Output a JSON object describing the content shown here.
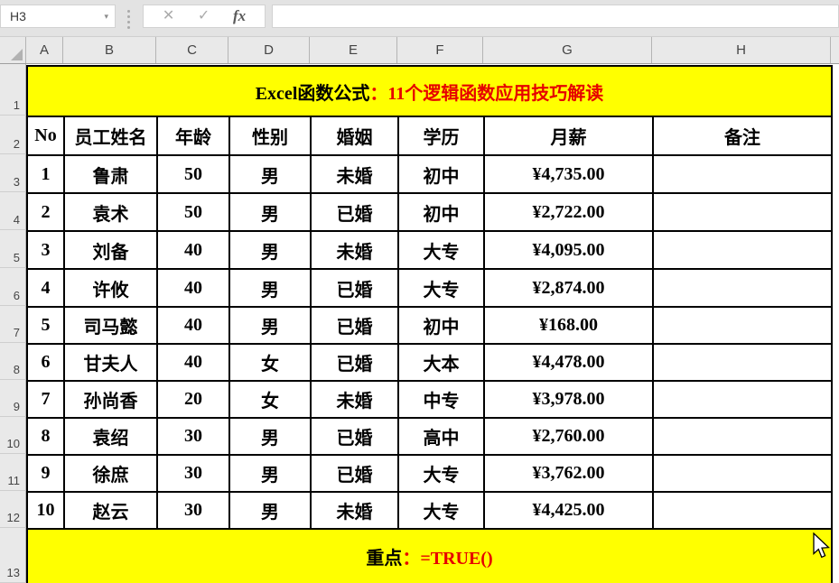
{
  "app": {
    "name_box": "H3",
    "formula_bar_value": ""
  },
  "toolbar_icons": {
    "cancel": "✕",
    "confirm": "✓",
    "function": "fx",
    "namebox_caret": "▾"
  },
  "grid": {
    "column_letters": [
      "A",
      "B",
      "C",
      "D",
      "E",
      "F",
      "G",
      "H"
    ],
    "row_numbers": [
      "1",
      "2",
      "3",
      "4",
      "5",
      "6",
      "7",
      "8",
      "9",
      "10",
      "11",
      "12",
      "13"
    ]
  },
  "banner": {
    "title_black": "Excel函数公式",
    "title_red": "：11个逻辑函数应用技巧解读"
  },
  "table": {
    "headers": [
      "No",
      "员工姓名",
      "年龄",
      "性别",
      "婚姻",
      "学历",
      "月薪",
      "备注"
    ],
    "rows": [
      [
        "1",
        "鲁肃",
        "50",
        "男",
        "未婚",
        "初中",
        "¥4,735.00",
        ""
      ],
      [
        "2",
        "袁术",
        "50",
        "男",
        "已婚",
        "初中",
        "¥2,722.00",
        ""
      ],
      [
        "3",
        "刘备",
        "40",
        "男",
        "未婚",
        "大专",
        "¥4,095.00",
        ""
      ],
      [
        "4",
        "许攸",
        "40",
        "男",
        "已婚",
        "大专",
        "¥2,874.00",
        ""
      ],
      [
        "5",
        "司马懿",
        "40",
        "男",
        "已婚",
        "初中",
        "¥168.00",
        ""
      ],
      [
        "6",
        "甘夫人",
        "40",
        "女",
        "已婚",
        "大本",
        "¥4,478.00",
        ""
      ],
      [
        "7",
        "孙尚香",
        "20",
        "女",
        "未婚",
        "中专",
        "¥3,978.00",
        ""
      ],
      [
        "8",
        "袁绍",
        "30",
        "男",
        "已婚",
        "高中",
        "¥2,760.00",
        ""
      ],
      [
        "9",
        "徐庶",
        "30",
        "男",
        "已婚",
        "大专",
        "¥3,762.00",
        ""
      ],
      [
        "10",
        "赵云",
        "30",
        "男",
        "未婚",
        "大专",
        "¥4,425.00",
        ""
      ]
    ]
  },
  "footer": {
    "label_black": "重点",
    "label_red": "：=TRUE()"
  },
  "colors": {
    "banner_bg": "#ffff00",
    "accent_red": "#e60000",
    "grid_border": "#000000"
  }
}
